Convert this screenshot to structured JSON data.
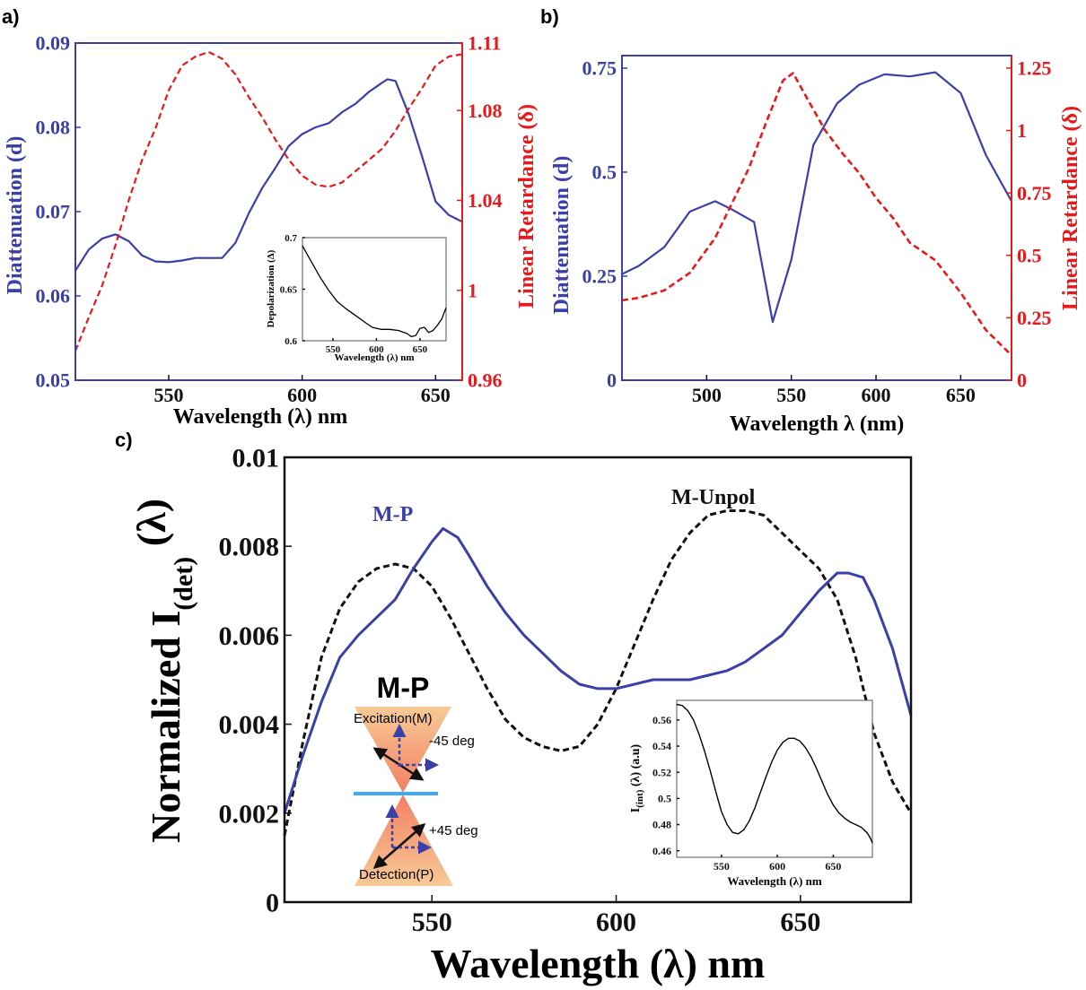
{
  "chart_data": [
    {
      "panel_label": "a)",
      "type": "line",
      "xlabel": "Wavelength (λ) nm",
      "ylabel_left": "Diattenuation (d)",
      "ylabel_right": "Linear Retardance (δ)",
      "xlim": [
        515,
        660
      ],
      "ylim_left": [
        0.05,
        0.09
      ],
      "ylim_right": [
        0.96,
        1.11
      ],
      "xticks": [
        "550",
        "600",
        "650"
      ],
      "yticks_left": [
        "0.05",
        "0.06",
        "0.07",
        "0.08",
        "0.09"
      ],
      "yticks_right": [
        "0.96",
        "1",
        "1.04",
        "1.08",
        "1.11"
      ],
      "colors": {
        "left": "#3b3fa8",
        "right": "#e8191b"
      },
      "series": [
        {
          "axis": "left",
          "style": "solid",
          "x": [
            515,
            520,
            525,
            530,
            535,
            540,
            545,
            550,
            555,
            560,
            565,
            570,
            575,
            580,
            585,
            590,
            595,
            600,
            605,
            610,
            615,
            620,
            625,
            630,
            632,
            635,
            640,
            645,
            650,
            655,
            660
          ],
          "values": [
            0.063,
            0.0655,
            0.0668,
            0.0673,
            0.0665,
            0.0648,
            0.0641,
            0.064,
            0.0642,
            0.0645,
            0.0645,
            0.0645,
            0.0663,
            0.0698,
            0.0728,
            0.0752,
            0.0778,
            0.0792,
            0.08,
            0.0805,
            0.0818,
            0.0828,
            0.0842,
            0.0853,
            0.0857,
            0.0855,
            0.0815,
            0.0765,
            0.0712,
            0.0696,
            0.0688
          ]
        },
        {
          "axis": "right",
          "style": "dashed",
          "x": [
            515,
            520,
            525,
            530,
            535,
            540,
            545,
            550,
            555,
            560,
            565,
            570,
            575,
            580,
            585,
            590,
            595,
            600,
            605,
            610,
            615,
            620,
            625,
            630,
            635,
            640,
            645,
            650,
            655,
            660
          ],
          "values": [
            0.973,
            0.988,
            1.002,
            1.02,
            1.04,
            1.058,
            1.072,
            1.089,
            1.1,
            1.104,
            1.106,
            1.103,
            1.096,
            1.086,
            1.077,
            1.067,
            1.058,
            1.051,
            1.047,
            1.046,
            1.048,
            1.053,
            1.058,
            1.063,
            1.071,
            1.081,
            1.09,
            1.1,
            1.104,
            1.105
          ]
        }
      ],
      "inset": {
        "type": "line",
        "xlabel": "Wavelength (λ) nm",
        "ylabel": "Depolarization (Δ)",
        "xlim": [
          515,
          680
        ],
        "ylim": [
          0.6,
          0.7
        ],
        "xticks": [
          "550",
          "600",
          "650"
        ],
        "yticks": [
          "0.6",
          "0.65",
          "0.7"
        ],
        "color": "#000000",
        "x": [
          515,
          525,
          535,
          545,
          555,
          565,
          575,
          585,
          595,
          605,
          615,
          625,
          635,
          640,
          645,
          650,
          655,
          660,
          665,
          670,
          675,
          680
        ],
        "values": [
          0.692,
          0.677,
          0.662,
          0.649,
          0.638,
          0.631,
          0.625,
          0.619,
          0.613,
          0.611,
          0.611,
          0.61,
          0.607,
          0.604,
          0.605,
          0.612,
          0.613,
          0.608,
          0.61,
          0.615,
          0.621,
          0.632
        ]
      }
    },
    {
      "panel_label": "b)",
      "type": "line",
      "xlabel": "Wavelength λ (nm)",
      "ylabel_left": "Diattenuation (d)",
      "ylabel_right": "Linear Retardance (δ)",
      "xlim": [
        450,
        680
      ],
      "ylim_left": [
        0,
        0.78
      ],
      "ylim_right": [
        0,
        1.3
      ],
      "xticks": [
        "500",
        "550",
        "600",
        "650"
      ],
      "yticks_left": [
        "0",
        "0.25",
        "0.5",
        "0.75"
      ],
      "yticks_right": [
        "0",
        "0.25",
        "0.5",
        "0.75",
        "1",
        "1.25"
      ],
      "colors": {
        "left": "#3b3fa8",
        "right": "#e8191b"
      },
      "series": [
        {
          "axis": "left",
          "style": "solid",
          "x": [
            450,
            460,
            475,
            490,
            505,
            515,
            528,
            539,
            550,
            563,
            577,
            590,
            605,
            620,
            635,
            650,
            665,
            680
          ],
          "values": [
            0.255,
            0.275,
            0.32,
            0.405,
            0.43,
            0.41,
            0.38,
            0.14,
            0.29,
            0.565,
            0.665,
            0.71,
            0.735,
            0.73,
            0.74,
            0.69,
            0.54,
            0.43
          ]
        },
        {
          "axis": "right",
          "style": "dashed",
          "x": [
            450,
            460,
            475,
            490,
            505,
            515,
            525,
            535,
            545,
            551,
            560,
            570,
            580,
            590,
            600,
            610,
            620,
            635,
            650,
            665,
            680
          ],
          "values": [
            0.32,
            0.33,
            0.36,
            0.43,
            0.57,
            0.71,
            0.85,
            1.03,
            1.2,
            1.23,
            1.12,
            1.0,
            0.91,
            0.83,
            0.73,
            0.65,
            0.55,
            0.48,
            0.35,
            0.2,
            0.1
          ]
        }
      ]
    },
    {
      "panel_label": "c)",
      "type": "line",
      "xlabel": "Wavelength (λ) nm",
      "ylabel": "Normalized I",
      "ylabel_sub": "(det)",
      "ylabel_suffix": "(λ)",
      "xlim": [
        510,
        680
      ],
      "ylim": [
        0,
        0.01
      ],
      "xticks": [
        "550",
        "600",
        "650"
      ],
      "yticks": [
        "0",
        "0.002",
        "0.004",
        "0.006",
        "0.008",
        "0.01"
      ],
      "series": [
        {
          "name": "M-P",
          "color": "#3b3fa8",
          "style": "solid",
          "x": [
            510,
            515,
            520,
            525,
            530,
            535,
            540,
            545,
            550,
            553,
            557,
            560,
            565,
            570,
            575,
            580,
            585,
            590,
            595,
            600,
            605,
            610,
            615,
            620,
            625,
            630,
            635,
            640,
            645,
            650,
            655,
            660,
            663,
            667,
            670,
            675,
            680
          ],
          "values": [
            0.002,
            0.0033,
            0.0045,
            0.0055,
            0.006,
            0.0064,
            0.0068,
            0.0075,
            0.0081,
            0.0084,
            0.0082,
            0.0078,
            0.0071,
            0.0065,
            0.006,
            0.0056,
            0.0052,
            0.0049,
            0.0048,
            0.0048,
            0.0049,
            0.005,
            0.005,
            0.005,
            0.0051,
            0.0052,
            0.0054,
            0.0057,
            0.006,
            0.0065,
            0.007,
            0.0074,
            0.0074,
            0.0073,
            0.0068,
            0.0057,
            0.0042
          ]
        },
        {
          "name": "M-Unpol",
          "color": "#111111",
          "style": "dashed",
          "x": [
            510,
            515,
            520,
            525,
            530,
            535,
            540,
            545,
            550,
            555,
            560,
            565,
            570,
            575,
            580,
            585,
            590,
            595,
            600,
            605,
            610,
            615,
            620,
            625,
            630,
            635,
            640,
            645,
            650,
            655,
            660,
            665,
            670,
            675,
            680
          ],
          "values": [
            0.0015,
            0.0036,
            0.0055,
            0.0066,
            0.0072,
            0.0075,
            0.0076,
            0.0075,
            0.0071,
            0.0064,
            0.0056,
            0.0048,
            0.0041,
            0.0037,
            0.0035,
            0.0034,
            0.0035,
            0.004,
            0.0048,
            0.0058,
            0.0068,
            0.0077,
            0.0083,
            0.0087,
            0.0088,
            0.0088,
            0.0087,
            0.0083,
            0.0079,
            0.0075,
            0.0068,
            0.0055,
            0.0038,
            0.0027,
            0.002
          ]
        }
      ],
      "inset": {
        "type": "line",
        "xlabel": "Wavelength (λ) nm",
        "ylabel": "I",
        "ylabel_sub": "(int)",
        "ylabel_suffix": "(λ) (a.u)",
        "xlim": [
          510,
          685
        ],
        "ylim": [
          0.455,
          0.575
        ],
        "xticks": [
          "550",
          "600",
          "650"
        ],
        "yticks": [
          "0.46",
          "0.48",
          "0.5",
          "0.52",
          "0.54",
          "0.56"
        ],
        "color": "#000000",
        "x": [
          510,
          515,
          520,
          525,
          530,
          535,
          540,
          545,
          550,
          555,
          560,
          565,
          570,
          575,
          580,
          585,
          590,
          595,
          600,
          605,
          610,
          615,
          620,
          625,
          630,
          635,
          640,
          645,
          650,
          655,
          660,
          665,
          670,
          675,
          680,
          683,
          685
        ],
        "values": [
          0.572,
          0.571,
          0.567,
          0.56,
          0.549,
          0.536,
          0.521,
          0.505,
          0.49,
          0.48,
          0.474,
          0.473,
          0.476,
          0.483,
          0.493,
          0.505,
          0.517,
          0.528,
          0.537,
          0.543,
          0.546,
          0.546,
          0.544,
          0.539,
          0.532,
          0.523,
          0.513,
          0.503,
          0.495,
          0.489,
          0.485,
          0.482,
          0.48,
          0.478,
          0.474,
          0.47,
          0.466
        ]
      },
      "diagram": {
        "title": "M-P",
        "excitation_label": "Excitation(M)",
        "detection_label": "Detection(P)",
        "angle_top": "-45 deg",
        "angle_bottom": "+45 deg"
      }
    }
  ]
}
